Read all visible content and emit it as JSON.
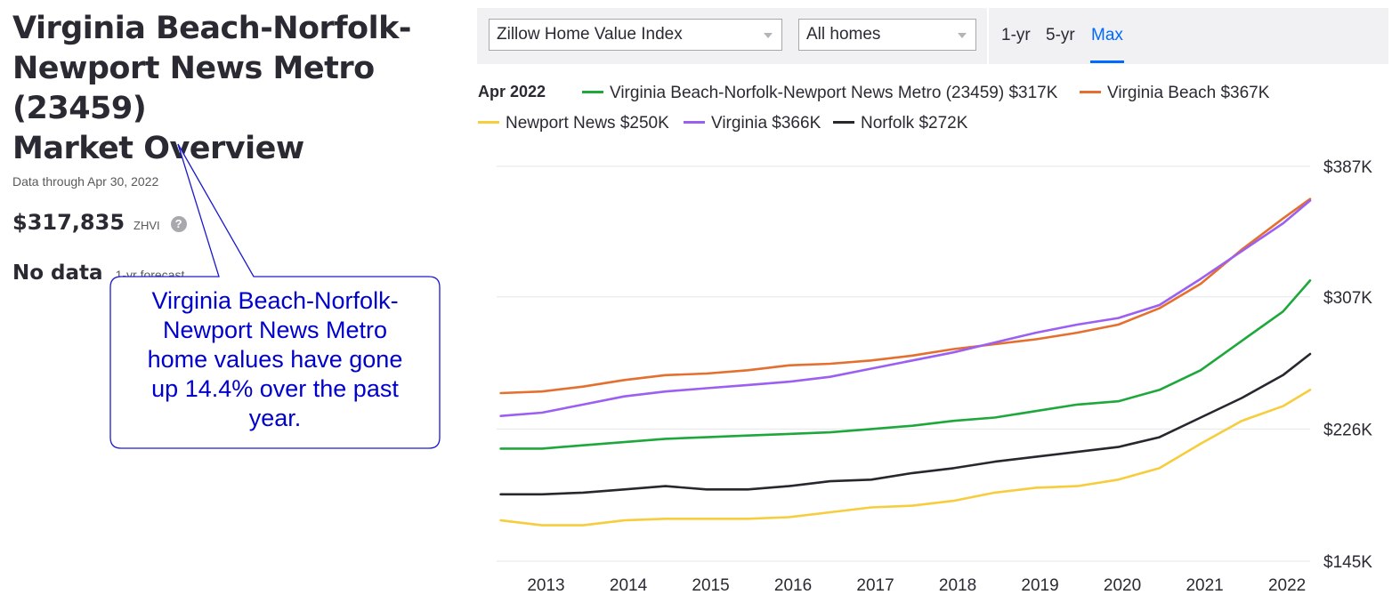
{
  "overview": {
    "title_lines": [
      "Virginia Beach-Norfolk-",
      "Newport News Metro (23459)",
      "Market Overview"
    ],
    "data_through": "Data through Apr 30, 2022",
    "zhvi_value": "$317,835",
    "zhvi_label": "ZHVI",
    "help_icon": "question-circle-icon",
    "forecast_value": "No data",
    "forecast_label": "1-yr forecast"
  },
  "callout": {
    "lines": [
      "Virginia Beach-Norfolk-",
      "Newport News Metro",
      "home values have gone",
      "up 14.4% over the past",
      "year."
    ],
    "text_color": "#0000cc"
  },
  "toolbar": {
    "metric_select": "Zillow Home Value Index",
    "type_select": "All homes",
    "tabs": [
      "1-yr",
      "5-yr",
      "Max"
    ],
    "active_tab": "Max",
    "accent": "#006aff"
  },
  "legend": {
    "date": "Apr 2022",
    "items": [
      {
        "label": "Virginia Beach-Norfolk-Newport News Metro (23459) $317K",
        "color": "#1ea83c"
      },
      {
        "label": "Virginia Beach $367K",
        "color": "#e46f2e"
      },
      {
        "label": "Newport News $250K",
        "color": "#f6cd3c"
      },
      {
        "label": "Virginia $366K",
        "color": "#9b5ff2"
      },
      {
        "label": "Norfolk $272K",
        "color": "#27272e"
      }
    ]
  },
  "chart_data": {
    "type": "line",
    "title": "",
    "xlabel": "",
    "ylabel": "",
    "x_ticks": [
      "2013",
      "2014",
      "2015",
      "2016",
      "2017",
      "2018",
      "2019",
      "2020",
      "2021",
      "2022"
    ],
    "y_ticks": [
      "$387K",
      "$307K",
      "$226K",
      "$145K"
    ],
    "y_tick_values": [
      387,
      307,
      226,
      145
    ],
    "xlim": [
      2012.45,
      2022.33
    ],
    "ylim": [
      145,
      387
    ],
    "grid": true,
    "y_axis_side": "right",
    "x": [
      2012.5,
      2013.0,
      2013.5,
      2014.0,
      2014.5,
      2015.0,
      2015.5,
      2016.0,
      2016.5,
      2017.0,
      2017.5,
      2018.0,
      2018.5,
      2019.0,
      2019.5,
      2020.0,
      2020.5,
      2021.0,
      2021.5,
      2022.0,
      2022.33
    ],
    "series": [
      {
        "name": "Virginia Beach-Norfolk-Newport News Metro (23459)",
        "color": "#1ea83c",
        "values": [
          214,
          214,
          216,
          218,
          220,
          221,
          222,
          223,
          224,
          226,
          228,
          231,
          233,
          237,
          241,
          243,
          250,
          262,
          280,
          298,
          317
        ]
      },
      {
        "name": "Virginia Beach",
        "color": "#e46f2e",
        "values": [
          248,
          249,
          252,
          256,
          259,
          260,
          262,
          265,
          266,
          268,
          271,
          275,
          278,
          281,
          285,
          290,
          300,
          315,
          336,
          355,
          367
        ]
      },
      {
        "name": "Newport News",
        "color": "#f6cd3c",
        "values": [
          170,
          167,
          167,
          170,
          171,
          171,
          171,
          172,
          175,
          178,
          179,
          182,
          187,
          190,
          191,
          195,
          202,
          217,
          231,
          240,
          250
        ]
      },
      {
        "name": "Virginia",
        "color": "#9b5ff2",
        "values": [
          234,
          236,
          241,
          246,
          249,
          251,
          253,
          255,
          258,
          263,
          268,
          273,
          279,
          285,
          290,
          294,
          302,
          318,
          335,
          352,
          366
        ]
      },
      {
        "name": "Norfolk",
        "color": "#27272e",
        "values": [
          186,
          186,
          187,
          189,
          191,
          189,
          189,
          191,
          194,
          195,
          199,
          202,
          206,
          209,
          212,
          215,
          221,
          233,
          245,
          259,
          272
        ]
      }
    ]
  }
}
